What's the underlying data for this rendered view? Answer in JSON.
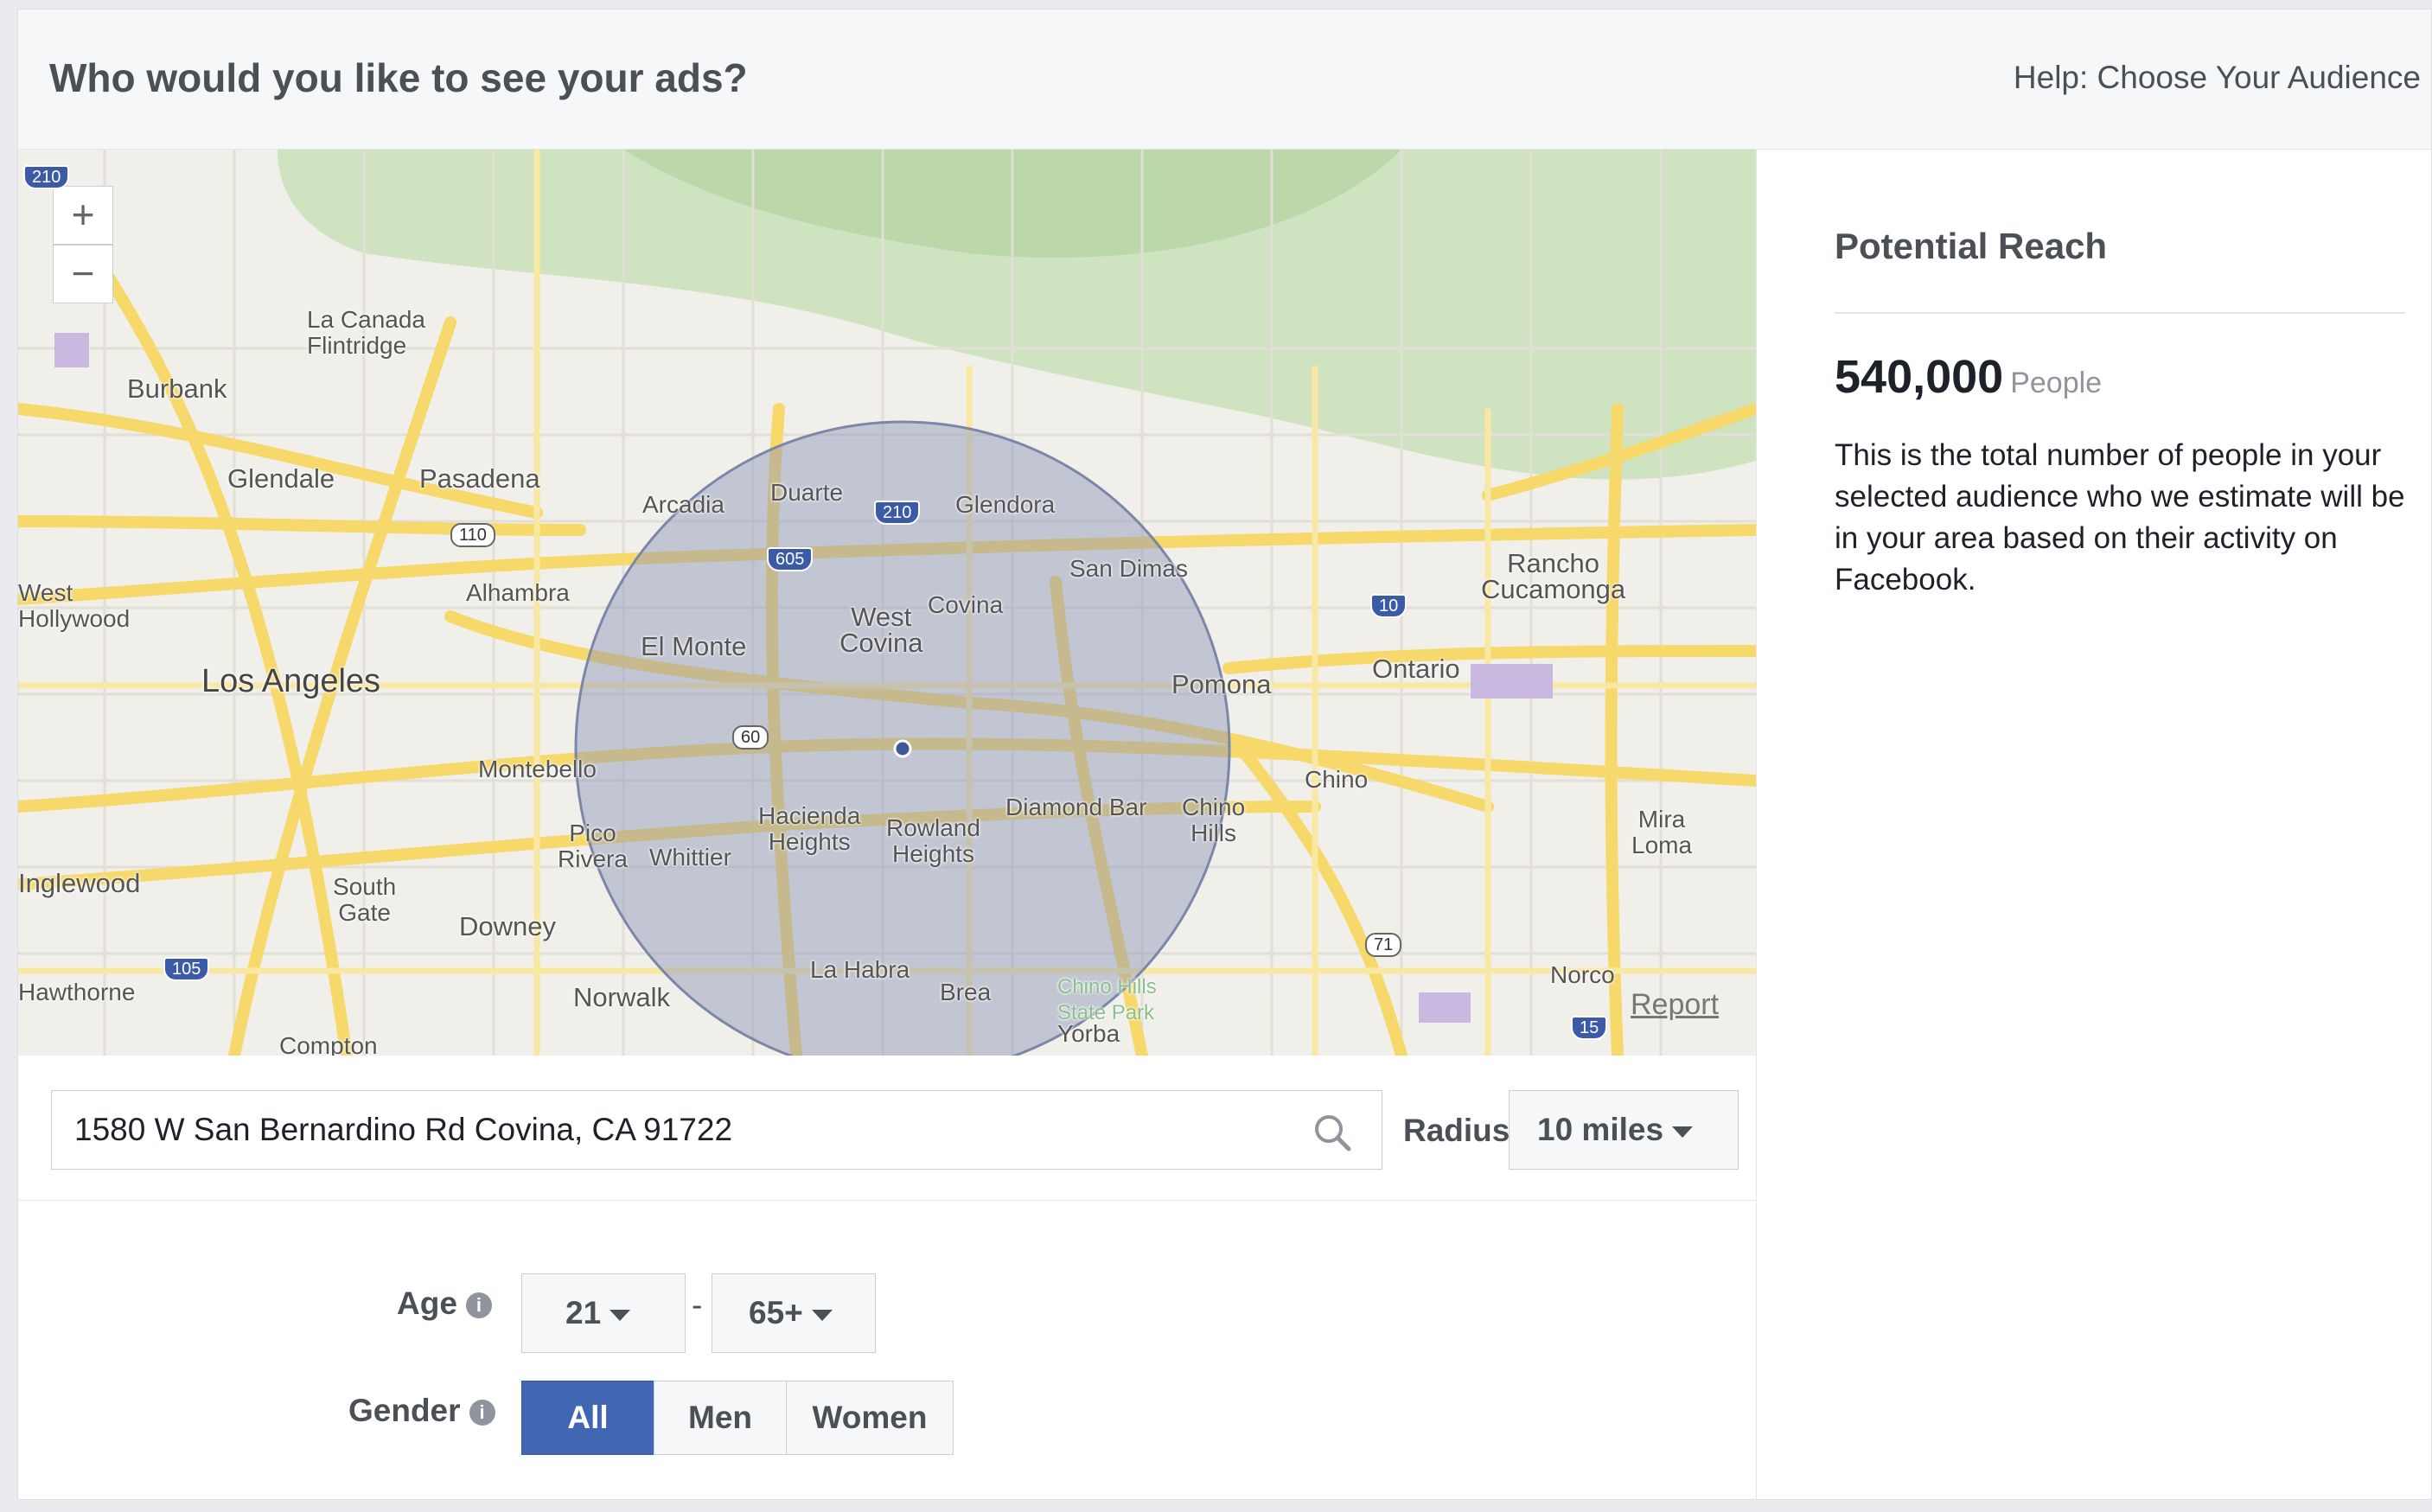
{
  "header": {
    "title": "Who would you like to see your ads?",
    "help_link": "Help: Choose Your Audience"
  },
  "map": {
    "zoom_in": "+",
    "zoom_out": "−",
    "report_link": "Report",
    "cities": [
      "La Canada\nFlintridge",
      "Burbank",
      "Glendale",
      "Pasadena",
      "Arcadia",
      "Duarte",
      "Glendora",
      "San Dimas",
      "Rancho\nCucamonga",
      "West\nHollywood",
      "Alhambra",
      "West\nCovina",
      "Covina",
      "El Monte",
      "Los Angeles",
      "Pomona",
      "Ontario",
      "Montebello",
      "Diamond Bar",
      "Chino\nHills",
      "Chino",
      "Hacienda\nHeights",
      "Rowland\nHeights",
      "Pico\nRivera",
      "Whittier",
      "Mira\nLoma",
      "Inglewood",
      "South\nGate",
      "Downey",
      "La Habra",
      "Brea",
      "Chino Hills\nState Park",
      "Norco",
      "Hawthorne",
      "Norwalk",
      "Compton",
      "Yorba"
    ],
    "highways": [
      "210",
      "110",
      "605",
      "210",
      "10",
      "60",
      "105",
      "71",
      "15",
      "210"
    ],
    "colors": {
      "radius_fill": "#8a95b8",
      "road": "#f6d86b",
      "mountains": "#cfe3c0"
    }
  },
  "search": {
    "address_value": "1580 W San Bernardino Rd Covina, CA 91722",
    "radius_label": "Radius",
    "radius_value": "10 miles"
  },
  "age": {
    "label": "Age",
    "min": "21",
    "dash": "-",
    "max": "65+"
  },
  "gender": {
    "label": "Gender",
    "options": [
      "All",
      "Men",
      "Women"
    ],
    "selected": "All"
  },
  "reach": {
    "title": "Potential Reach",
    "number": "540,000",
    "unit": "People",
    "description": "This is the total number of people in your selected audience who we estimate will be in your area based on their activity on Facebook."
  },
  "icons": [
    "search-icon",
    "info-icon",
    "caret-down-icon",
    "zoom-in-icon",
    "zoom-out-icon"
  ]
}
